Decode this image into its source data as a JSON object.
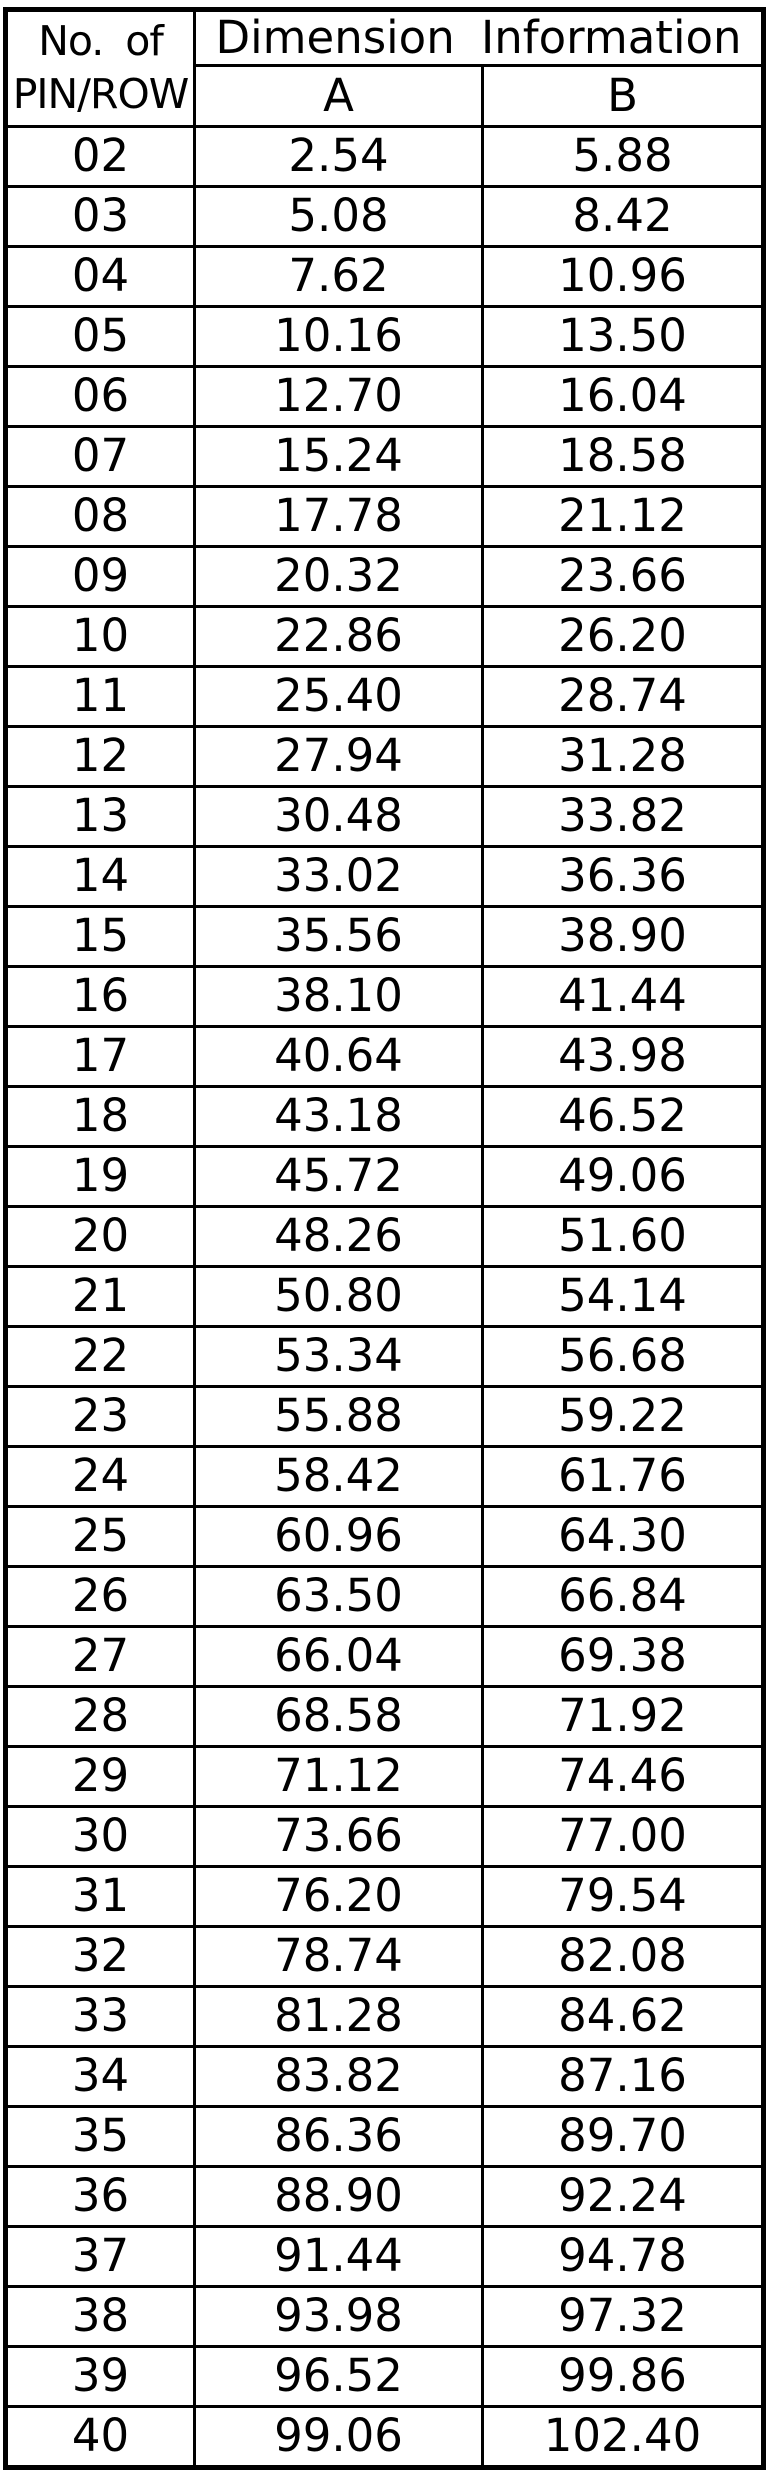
{
  "colors": {
    "background": "#ffffff",
    "border": "#000000",
    "text": "#000000"
  },
  "table": {
    "header": {
      "pin_line1": "No. of",
      "pin_line2": "PIN/ROW",
      "dimension_title": "Dimension Information",
      "col_a": "A",
      "col_b": "B"
    },
    "rows": [
      {
        "pins": "02",
        "a": "2.54",
        "b": "5.88"
      },
      {
        "pins": "03",
        "a": "5.08",
        "b": "8.42"
      },
      {
        "pins": "04",
        "a": "7.62",
        "b": "10.96"
      },
      {
        "pins": "05",
        "a": "10.16",
        "b": "13.50"
      },
      {
        "pins": "06",
        "a": "12.70",
        "b": "16.04"
      },
      {
        "pins": "07",
        "a": "15.24",
        "b": "18.58"
      },
      {
        "pins": "08",
        "a": "17.78",
        "b": "21.12"
      },
      {
        "pins": "09",
        "a": "20.32",
        "b": "23.66"
      },
      {
        "pins": "10",
        "a": "22.86",
        "b": "26.20"
      },
      {
        "pins": "11",
        "a": "25.40",
        "b": "28.74"
      },
      {
        "pins": "12",
        "a": "27.94",
        "b": "31.28"
      },
      {
        "pins": "13",
        "a": "30.48",
        "b": "33.82"
      },
      {
        "pins": "14",
        "a": "33.02",
        "b": "36.36"
      },
      {
        "pins": "15",
        "a": "35.56",
        "b": "38.90"
      },
      {
        "pins": "16",
        "a": "38.10",
        "b": "41.44"
      },
      {
        "pins": "17",
        "a": "40.64",
        "b": "43.98"
      },
      {
        "pins": "18",
        "a": "43.18",
        "b": "46.52"
      },
      {
        "pins": "19",
        "a": "45.72",
        "b": "49.06"
      },
      {
        "pins": "20",
        "a": "48.26",
        "b": "51.60"
      },
      {
        "pins": "21",
        "a": "50.80",
        "b": "54.14"
      },
      {
        "pins": "22",
        "a": "53.34",
        "b": "56.68"
      },
      {
        "pins": "23",
        "a": "55.88",
        "b": "59.22"
      },
      {
        "pins": "24",
        "a": "58.42",
        "b": "61.76"
      },
      {
        "pins": "25",
        "a": "60.96",
        "b": "64.30"
      },
      {
        "pins": "26",
        "a": "63.50",
        "b": "66.84"
      },
      {
        "pins": "27",
        "a": "66.04",
        "b": "69.38"
      },
      {
        "pins": "28",
        "a": "68.58",
        "b": "71.92"
      },
      {
        "pins": "29",
        "a": "71.12",
        "b": "74.46"
      },
      {
        "pins": "30",
        "a": "73.66",
        "b": "77.00"
      },
      {
        "pins": "31",
        "a": "76.20",
        "b": "79.54"
      },
      {
        "pins": "32",
        "a": "78.74",
        "b": "82.08"
      },
      {
        "pins": "33",
        "a": "81.28",
        "b": "84.62"
      },
      {
        "pins": "34",
        "a": "83.82",
        "b": "87.16"
      },
      {
        "pins": "35",
        "a": "86.36",
        "b": "89.70"
      },
      {
        "pins": "36",
        "a": "88.90",
        "b": "92.24"
      },
      {
        "pins": "37",
        "a": "91.44",
        "b": "94.78"
      },
      {
        "pins": "38",
        "a": "93.98",
        "b": "97.32"
      },
      {
        "pins": "39",
        "a": "96.52",
        "b": "99.86"
      },
      {
        "pins": "40",
        "a": "99.06",
        "b": "102.40"
      }
    ]
  }
}
